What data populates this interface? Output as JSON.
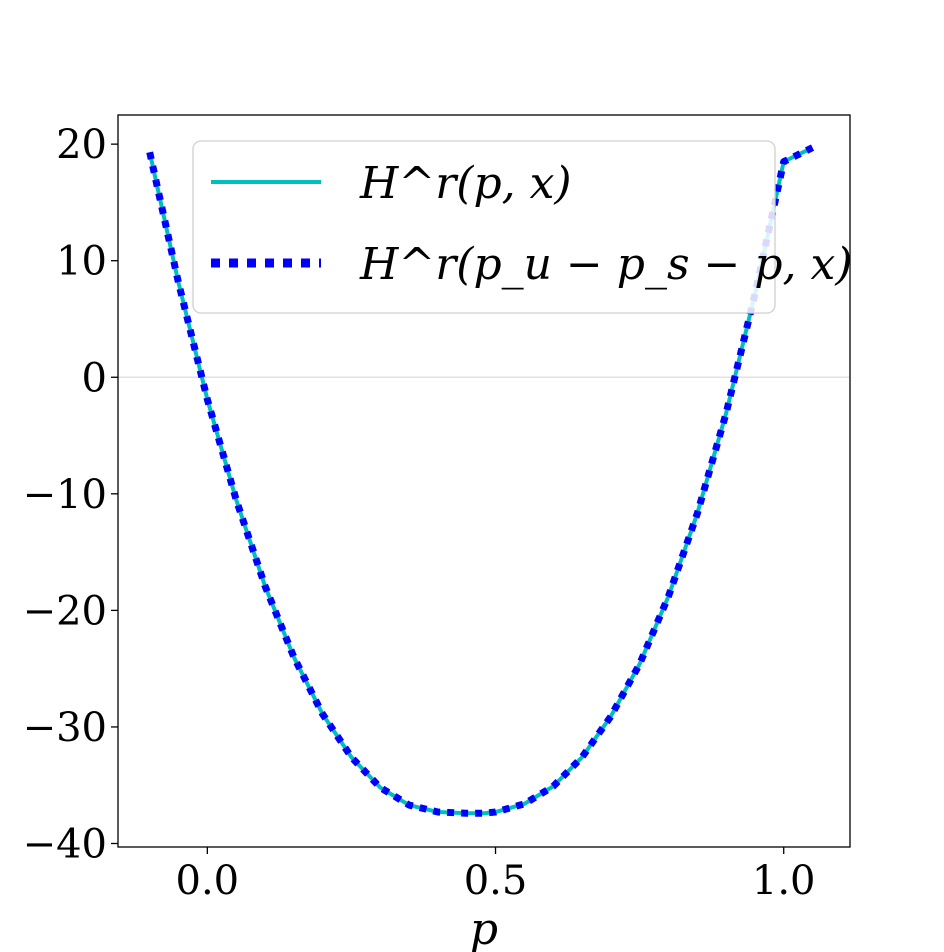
{
  "chart_data": {
    "type": "line",
    "title": "",
    "xlabel": "p",
    "ylabel": "",
    "xlim": [
      -0.155,
      1.115
    ],
    "ylim": [
      -40.3,
      22.5
    ],
    "x_ticks": [
      0.0,
      0.5,
      1.0
    ],
    "x_tick_labels": [
      "0.0",
      "0.5",
      "1.0"
    ],
    "y_ticks": [
      -40,
      -30,
      -20,
      -10,
      0,
      10,
      20
    ],
    "y_tick_labels": [
      "−40",
      "−30",
      "−20",
      "−10",
      "0",
      "10",
      "20"
    ],
    "grid": false,
    "zero_line": true,
    "legend_placement": "upper-center",
    "x": [
      -0.1,
      -0.05,
      0.0,
      0.05,
      0.1,
      0.15,
      0.2,
      0.25,
      0.3,
      0.35,
      0.4,
      0.45,
      0.48,
      0.5,
      0.55,
      0.6,
      0.65,
      0.7,
      0.75,
      0.8,
      0.85,
      0.9,
      0.95,
      1.0,
      1.05
    ],
    "series": [
      {
        "name": "H^r(p, x)",
        "style": "solid",
        "color": "#00bfbf",
        "values": [
          19.3,
          8.1,
          -1.9,
          -10.5,
          -17.9,
          -24.0,
          -28.9,
          -32.6,
          -35.2,
          -36.7,
          -37.3,
          -37.4,
          -37.4,
          -37.3,
          -36.6,
          -35.1,
          -32.6,
          -29.1,
          -24.6,
          -18.8,
          -11.7,
          -3.1,
          7.1,
          18.5,
          19.7
        ]
      },
      {
        "name": "H^r(p_u − p_s − p, x)",
        "style": "dotted",
        "color": "#0000ff",
        "values": [
          19.3,
          8.1,
          -1.9,
          -10.5,
          -17.9,
          -24.0,
          -28.9,
          -32.6,
          -35.2,
          -36.7,
          -37.3,
          -37.4,
          -37.4,
          -37.3,
          -36.6,
          -35.1,
          -32.6,
          -29.1,
          -24.6,
          -18.8,
          -11.7,
          -3.1,
          7.1,
          18.5,
          19.7
        ]
      }
    ]
  }
}
